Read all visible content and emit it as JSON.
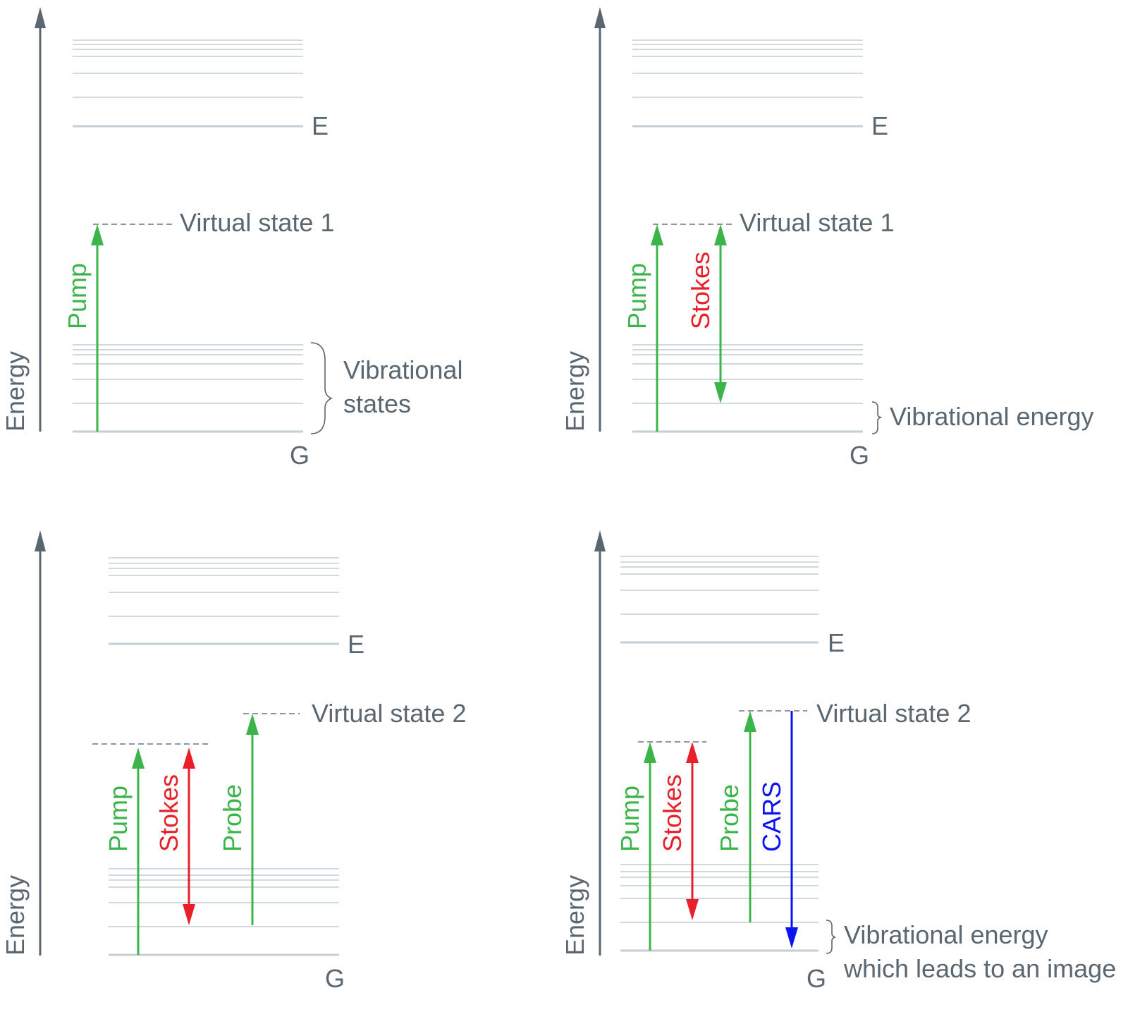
{
  "colors": {
    "text": "#5b6770",
    "levels": "#c3ced6",
    "pump": "#3bb54a",
    "stokes": "#e8202a",
    "probe": "#3bb54a",
    "cars": "#0a14f0"
  },
  "panels": [
    {
      "axis": "Energy",
      "excited": "E",
      "ground": "G",
      "virtual": "Virtual state 1",
      "pump": "Pump",
      "brace_text": [
        "Vibrational",
        "states"
      ]
    },
    {
      "axis": "Energy",
      "excited": "E",
      "ground": "G",
      "virtual": "Virtual state 1",
      "pump": "Pump",
      "stokes": "Stokes",
      "brace_text": [
        "Vibrational energy"
      ]
    },
    {
      "axis": "Energy",
      "excited": "E",
      "ground": "G",
      "virtual": "Virtual state 2",
      "pump": "Pump",
      "stokes": "Stokes",
      "probe": "Probe"
    },
    {
      "axis": "Energy",
      "excited": "E",
      "ground": "G",
      "virtual": "Virtual state 2",
      "pump": "Pump",
      "stokes": "Stokes",
      "probe": "Probe",
      "cars": "CARS",
      "brace_text": [
        "Vibrational energy",
        "which leads to an image"
      ]
    }
  ]
}
